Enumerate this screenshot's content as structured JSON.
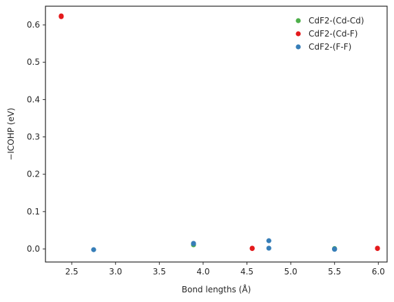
{
  "chart_data": {
    "type": "scatter",
    "title": "",
    "xlabel": "Bond lengths (Å)",
    "ylabel": "−ICOHP (eV)",
    "xlim": [
      2.2,
      6.1
    ],
    "ylim": [
      -0.035,
      0.65
    ],
    "xticks": [
      2.5,
      3.0,
      3.5,
      4.0,
      4.5,
      5.0,
      5.5,
      6.0
    ],
    "yticks": [
      0.0,
      0.1,
      0.2,
      0.3,
      0.4,
      0.5,
      0.6
    ],
    "xtick_labels": [
      "2.5",
      "3.0",
      "3.5",
      "4.0",
      "4.5",
      "5.0",
      "5.5",
      "6.0"
    ],
    "ytick_labels": [
      "0.0",
      "0.1",
      "0.2",
      "0.3",
      "0.4",
      "0.5",
      "0.6"
    ],
    "grid": false,
    "legend_position": "top-right",
    "series": [
      {
        "name": "CdF2-(Cd-Cd)",
        "color": "#4daf4a",
        "points": [
          {
            "x": 3.89,
            "y": 0.011
          },
          {
            "x": 3.89,
            "y": 0.013
          },
          {
            "x": 5.5,
            "y": 0.0
          },
          {
            "x": 5.5,
            "y": 0.001
          }
        ]
      },
      {
        "name": "CdF2-(Cd-F)",
        "color": "#e41a1c",
        "points": [
          {
            "x": 2.38,
            "y": 0.622
          },
          {
            "x": 2.38,
            "y": 0.624
          },
          {
            "x": 4.56,
            "y": 0.001
          },
          {
            "x": 4.56,
            "y": 0.002
          },
          {
            "x": 5.99,
            "y": 0.001
          },
          {
            "x": 5.99,
            "y": 0.002
          }
        ]
      },
      {
        "name": "CdF2-(F-F)",
        "color": "#377eb8",
        "points": [
          {
            "x": 2.75,
            "y": -0.002
          },
          {
            "x": 3.89,
            "y": 0.014
          },
          {
            "x": 3.89,
            "y": 0.015
          },
          {
            "x": 4.75,
            "y": 0.022
          },
          {
            "x": 4.75,
            "y": 0.002
          },
          {
            "x": 5.5,
            "y": -0.001
          },
          {
            "x": 5.5,
            "y": 0.0
          }
        ]
      }
    ]
  }
}
